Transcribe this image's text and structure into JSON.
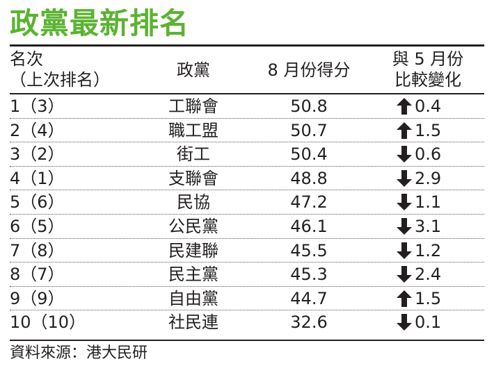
{
  "title": "政黨最新排名",
  "header": {
    "rank_line1": "名次",
    "rank_line2": "（上次排名）",
    "party": "政黨",
    "score": "8 月份得分",
    "change_line1": "與 5 月份",
    "change_line2": "比較變化"
  },
  "chart_data": {
    "type": "table",
    "title": "政黨最新排名",
    "columns": [
      "名次（上次排名）",
      "政黨",
      "8 月份得分",
      "與 5 月份比較變化"
    ],
    "rows": [
      {
        "rank": "1（3）",
        "party": "工聯會",
        "score": "50.8",
        "direction": "up",
        "change": "0.4"
      },
      {
        "rank": "2（4）",
        "party": "職工盟",
        "score": "50.7",
        "direction": "up",
        "change": "1.5"
      },
      {
        "rank": "3（2）",
        "party": "街工",
        "score": "50.4",
        "direction": "down",
        "change": "0.6"
      },
      {
        "rank": "4（1）",
        "party": "支聯會",
        "score": "48.8",
        "direction": "down",
        "change": "2.9"
      },
      {
        "rank": "5（6）",
        "party": "民協",
        "score": "47.2",
        "direction": "down",
        "change": "1.1"
      },
      {
        "rank": "6（5）",
        "party": "公民黨",
        "score": "46.1",
        "direction": "down",
        "change": "3.1"
      },
      {
        "rank": "7（8）",
        "party": "民建聯",
        "score": "45.5",
        "direction": "down",
        "change": "1.2"
      },
      {
        "rank": "8（7）",
        "party": "民主黨",
        "score": "45.3",
        "direction": "down",
        "change": "2.4"
      },
      {
        "rank": "9（9）",
        "party": "自由黨",
        "score": "44.7",
        "direction": "up",
        "change": "1.5"
      },
      {
        "rank": "10（10）",
        "party": "社民連",
        "score": "32.6",
        "direction": "down",
        "change": "0.1"
      }
    ]
  },
  "source": "資料來源：港大民研",
  "colors": {
    "title": "#5bb331",
    "text": "#231f20"
  }
}
